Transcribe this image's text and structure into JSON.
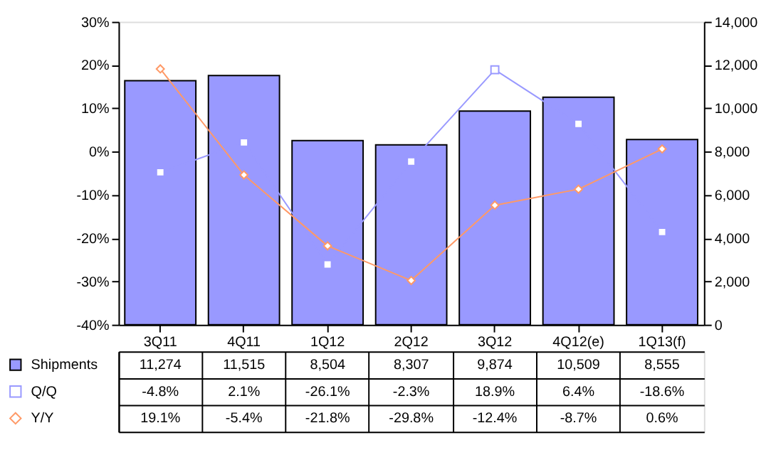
{
  "chart_data": {
    "type": "bar",
    "categories": [
      "3Q11",
      "4Q11",
      "1Q12",
      "2Q12",
      "3Q12",
      "4Q12(e)",
      "1Q13(f)"
    ],
    "series": [
      {
        "name": "Shipments",
        "axis": "y2",
        "color": "#9999ff",
        "values": [
          11274,
          11515,
          8504,
          8307,
          9874,
          10509,
          8555
        ],
        "value_labels": [
          "11,274",
          "11,515",
          "8,504",
          "8,307",
          "9,874",
          "10,509",
          "8,555"
        ]
      },
      {
        "name": "Q/Q",
        "type": "line",
        "axis": "y",
        "color": "#9999ff",
        "marker": "square",
        "values": [
          -4.8,
          2.1,
          -26.1,
          -2.3,
          18.9,
          6.4,
          -18.6
        ],
        "value_labels": [
          "-4.8%",
          "2.1%",
          "-26.1%",
          "-2.3%",
          "18.9%",
          "6.4%",
          "-18.6%"
        ]
      },
      {
        "name": "Y/Y",
        "type": "line",
        "axis": "y",
        "color": "#ff9966",
        "marker": "diamond",
        "values": [
          19.1,
          -5.4,
          -21.8,
          -29.8,
          -12.4,
          -8.7,
          0.6
        ],
        "value_labels": [
          "19.1%",
          "-5.4%",
          "-21.8%",
          "-29.8%",
          "-12.4%",
          "-8.7%",
          "0.6%"
        ]
      }
    ],
    "ylim": [
      -40,
      30
    ],
    "yticks": [
      {
        "value": -40,
        "label": "-40%"
      },
      {
        "value": -30,
        "label": "-30%"
      },
      {
        "value": -20,
        "label": "-20%"
      },
      {
        "value": -10,
        "label": "-10%"
      },
      {
        "value": 0,
        "label": "0%"
      },
      {
        "value": 10,
        "label": "10%"
      },
      {
        "value": 20,
        "label": "20%"
      },
      {
        "value": 30,
        "label": "30%"
      }
    ],
    "y2lim": [
      0,
      14000
    ],
    "y2ticks": [
      0,
      {
        "value": 2000,
        "label": "2,000"
      },
      {
        "value": 4000,
        "label": "4,000"
      },
      {
        "value": 6000,
        "label": "6,000"
      },
      {
        "value": 8000,
        "label": "8,000"
      },
      {
        "value": 10000,
        "label": "10,000"
      },
      {
        "value": 12000,
        "label": "12,000"
      },
      {
        "value": 14000,
        "label": "14,000"
      }
    ],
    "legend": "bottom",
    "grid": false
  }
}
